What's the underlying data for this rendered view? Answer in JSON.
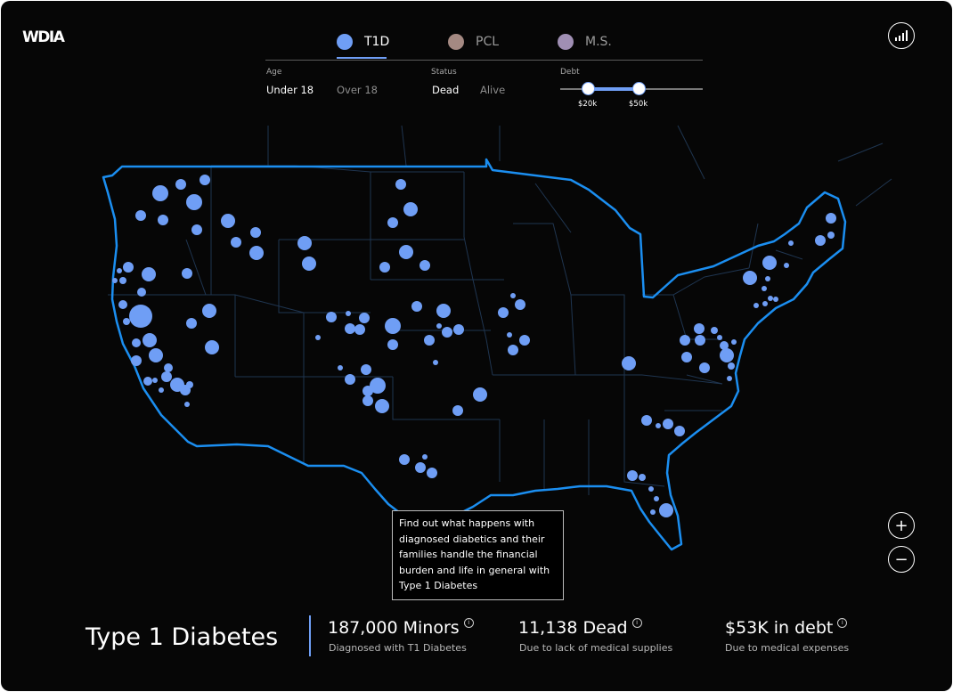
{
  "app": {
    "logo": "WDIA"
  },
  "tabs": [
    {
      "label": "T1D",
      "color": "#6f9ef5",
      "active": true
    },
    {
      "label": "PCL",
      "color": "#a48982",
      "active": false
    },
    {
      "label": "M.S.",
      "color": "#a08fb4",
      "active": false
    }
  ],
  "filters": {
    "age": {
      "label": "Age",
      "options": [
        "Under 18",
        "Over 18"
      ],
      "selected": "Under 18"
    },
    "status": {
      "label": "Status",
      "options": [
        "Dead",
        "Alive"
      ],
      "selected": "Dead"
    },
    "debt": {
      "label": "Debt",
      "min_label": "$20k",
      "max_label": "$50k"
    }
  },
  "controls": {
    "zoom_in": "+",
    "zoom_out": "−"
  },
  "tooltip": {
    "text": "Find out what happens with diagnosed diabetics and their families handle the financial burden and life in general with Type 1 Diabetes"
  },
  "footer": {
    "title": "Type 1 Diabetes",
    "stats": [
      {
        "value": "187,000 Minors",
        "sub": "Diagnosed with T1 Diabetes"
      },
      {
        "value": "11,138 Dead",
        "sub": "Due to lack of medical supplies"
      },
      {
        "value": "$53K in debt",
        "sub": "Due to medical expenses"
      }
    ]
  },
  "colors": {
    "accent": "#6f9ef5",
    "outline": "#1b8ef0",
    "state_lines": "#1f3550",
    "background": "#060606"
  }
}
